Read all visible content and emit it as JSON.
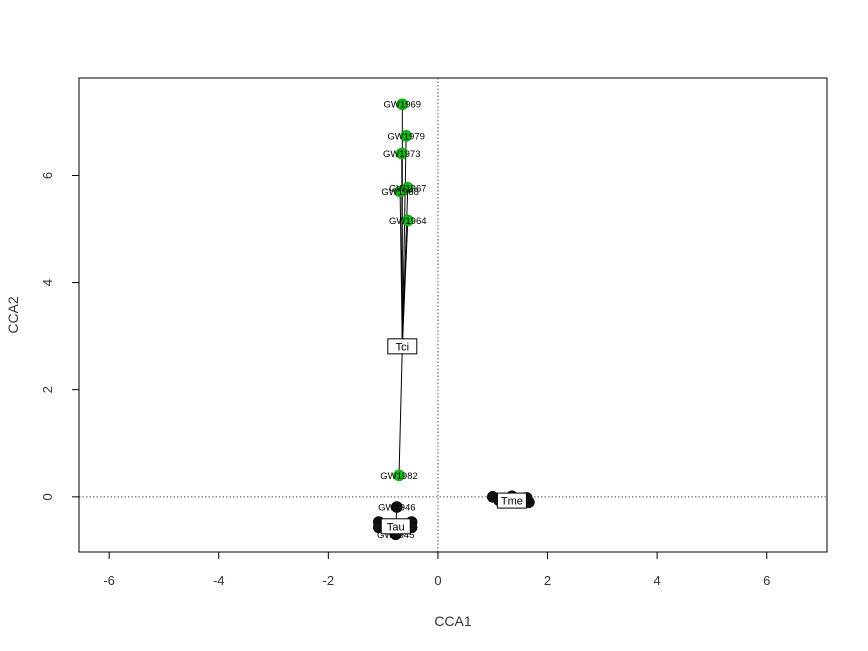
{
  "chart_data": {
    "type": "scatter",
    "xlabel": "CCA1",
    "ylabel": "CCA2",
    "xlim": [
      -6.55,
      7.1
    ],
    "ylim": [
      -1.03,
      7.82
    ],
    "xticks": [
      -6,
      -4,
      -2,
      0,
      2,
      4,
      6
    ],
    "yticks": [
      0,
      2,
      4,
      6
    ],
    "grid": false,
    "reference_lines": [
      {
        "axis": "x",
        "value": 0,
        "style": "dotted"
      },
      {
        "axis": "y",
        "value": 0,
        "style": "dotted"
      }
    ],
    "groups": [
      {
        "centroid_label": "Tci",
        "centroid": [
          -0.65,
          2.81
        ],
        "color": "#11bb11",
        "points": [
          {
            "label": "GW1969",
            "x": -0.65,
            "y": 7.33
          },
          {
            "label": "GW1979",
            "x": -0.58,
            "y": 6.74
          },
          {
            "label": "GW1973",
            "x": -0.66,
            "y": 6.41
          },
          {
            "label": "GW1967",
            "x": -0.55,
            "y": 5.77
          },
          {
            "label": "GW1968",
            "x": -0.69,
            "y": 5.7
          },
          {
            "label": "GW1964",
            "x": -0.55,
            "y": 5.16
          },
          {
            "label": "GW1982",
            "x": -0.71,
            "y": 0.4
          }
        ]
      },
      {
        "centroid_label": "Tau",
        "centroid": [
          -0.77,
          -0.55
        ],
        "color": "#111111",
        "points": [
          {
            "label": "GW1946",
            "x": -0.75,
            "y": -0.19
          },
          {
            "label": "",
            "x": -1.08,
            "y": -0.47
          },
          {
            "label": "",
            "x": -0.48,
            "y": -0.47
          },
          {
            "label": "",
            "x": -1.08,
            "y": -0.57
          },
          {
            "label": "",
            "x": -0.48,
            "y": -0.57
          },
          {
            "label": "GW1945",
            "x": -0.77,
            "y": -0.7
          }
        ]
      },
      {
        "centroid_label": "Tme",
        "centroid": [
          1.35,
          -0.07
        ],
        "color": "#111111",
        "points": [
          {
            "label": "",
            "x": 1.0,
            "y": 0.0
          },
          {
            "label": "",
            "x": 1.12,
            "y": -0.07
          },
          {
            "label": "",
            "x": 1.35,
            "y": 0.01
          },
          {
            "label": "",
            "x": 1.55,
            "y": -0.03
          },
          {
            "label": "",
            "x": 1.66,
            "y": -0.1
          },
          {
            "label": "",
            "x": 1.62,
            "y": -0.02
          }
        ]
      }
    ]
  }
}
